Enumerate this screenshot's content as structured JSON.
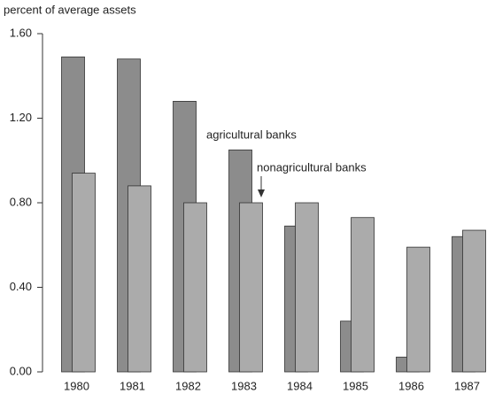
{
  "chart_data": {
    "type": "bar",
    "y_label": "percent of average assets",
    "categories": [
      "1980",
      "1981",
      "1982",
      "1983",
      "1984",
      "1985",
      "1986",
      "1987"
    ],
    "series": [
      {
        "name": "agricultural banks",
        "color": "#8c8c8c",
        "values": [
          1.49,
          1.48,
          1.28,
          1.05,
          0.69,
          0.24,
          0.07,
          0.64
        ]
      },
      {
        "name": "nonagricultural banks",
        "color": "#ababab",
        "values": [
          0.94,
          0.88,
          0.8,
          0.8,
          0.8,
          0.73,
          0.59,
          0.67
        ]
      }
    ],
    "ylim": [
      0,
      1.6
    ],
    "yticks": [
      {
        "value": 0,
        "label": "0.00"
      },
      {
        "value": 0.4,
        "label": "0.40"
      },
      {
        "value": 0.8,
        "label": "0.80"
      },
      {
        "value": 1.2,
        "label": "1.20"
      },
      {
        "value": 1.6,
        "label": "1.60"
      }
    ]
  }
}
